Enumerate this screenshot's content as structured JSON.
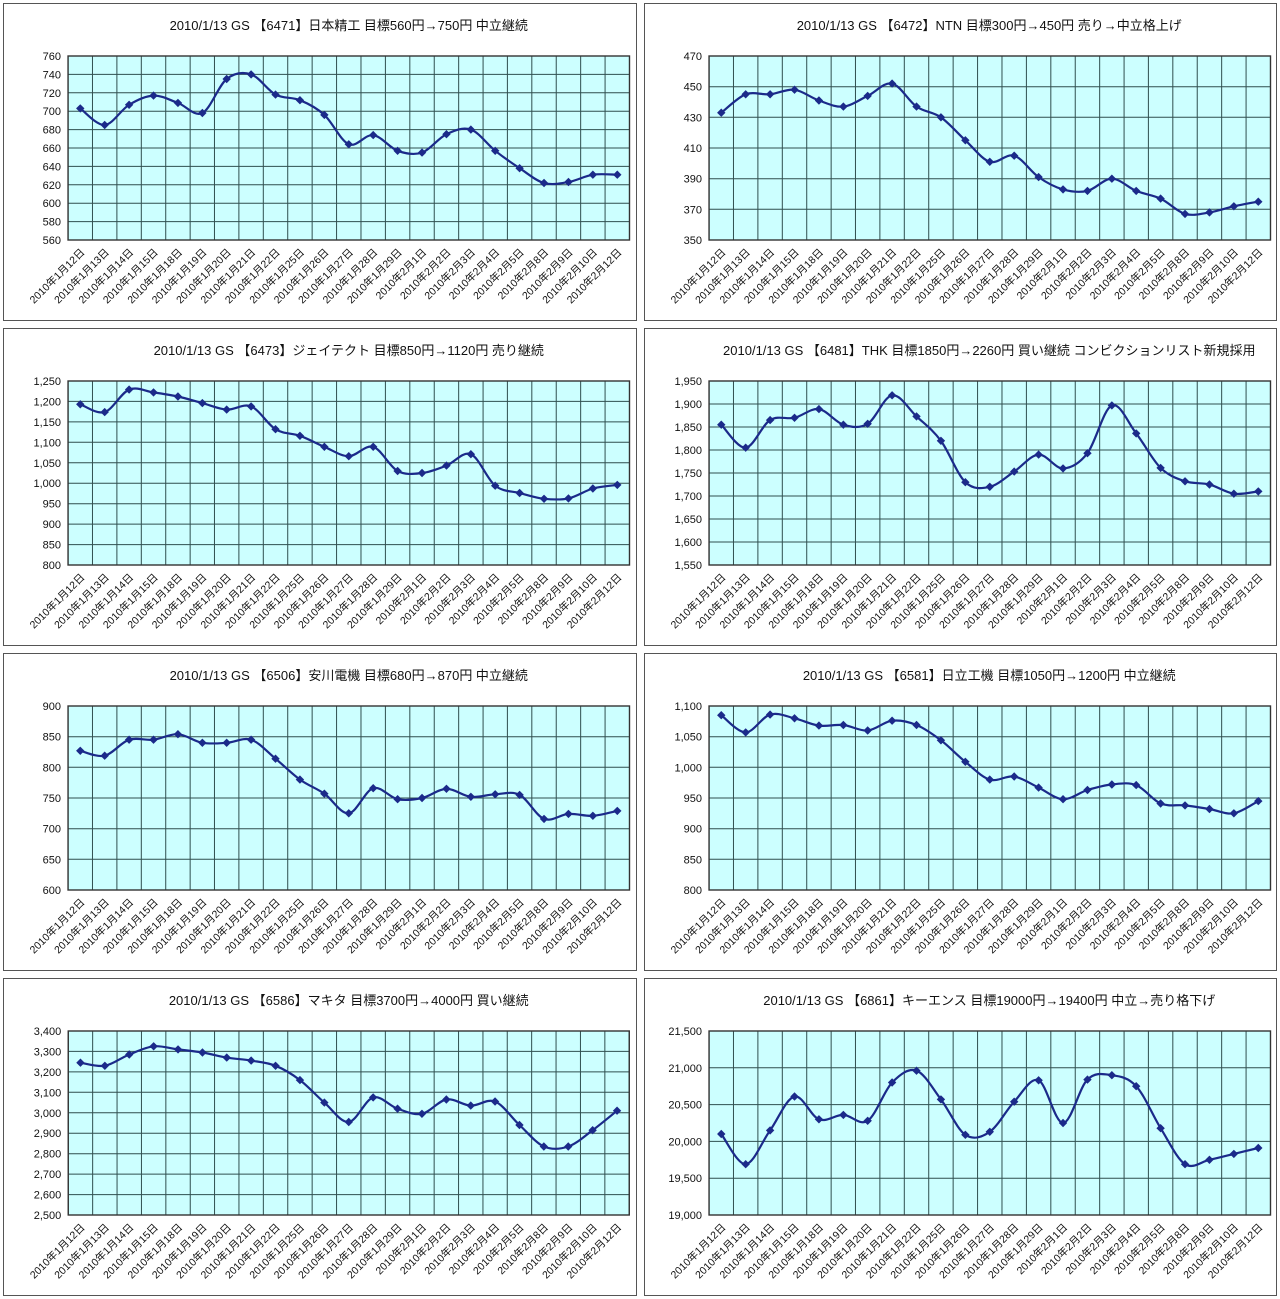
{
  "style": {
    "plot_area_bg": "#CCFFFF",
    "grid_color": "#2F4F4F",
    "series_color": "#1B2A8A",
    "axis_color": "#333333",
    "panel_border_color": "#555555",
    "title_color": "#111111",
    "tick_color": "#111111"
  },
  "chart_data": [
    {
      "type": "line",
      "title": "2010/1/13 GS 【6471】日本精工 目標560円→750円 中立継続",
      "categories": [
        "2010年1月12日",
        "2010年1月13日",
        "2010年1月14日",
        "2010年1月15日",
        "2010年1月18日",
        "2010年1月19日",
        "2010年1月20日",
        "2010年1月21日",
        "2010年1月22日",
        "2010年1月25日",
        "2010年1月26日",
        "2010年1月27日",
        "2010年1月28日",
        "2010年1月29日",
        "2010年2月1日",
        "2010年2月2日",
        "2010年2月3日",
        "2010年2月4日",
        "2010年2月5日",
        "2010年2月8日",
        "2010年2月9日",
        "2010年2月10日",
        "2010年2月12日"
      ],
      "values": [
        703,
        685,
        707,
        717,
        709,
        698,
        735,
        740,
        718,
        712,
        696,
        664,
        674,
        657,
        655,
        675,
        680,
        657,
        638,
        622,
        623,
        631,
        631
      ],
      "ylim": [
        560,
        760
      ],
      "ytick_step": 20,
      "xlabel": "",
      "ylabel": "",
      "grid": true,
      "legend": "none",
      "marker": "diamond",
      "smoothed": true,
      "number_format": "comma"
    },
    {
      "type": "line",
      "title": "2010/1/13 GS 【6472】NTN 目標300円→450円 売り→中立格上げ",
      "categories": [
        "2010年1月12日",
        "2010年1月13日",
        "2010年1月14日",
        "2010年1月15日",
        "2010年1月18日",
        "2010年1月19日",
        "2010年1月20日",
        "2010年1月21日",
        "2010年1月22日",
        "2010年1月25日",
        "2010年1月26日",
        "2010年1月27日",
        "2010年1月28日",
        "2010年1月29日",
        "2010年2月1日",
        "2010年2月2日",
        "2010年2月3日",
        "2010年2月4日",
        "2010年2月5日",
        "2010年2月8日",
        "2010年2月9日",
        "2010年2月10日",
        "2010年2月12日"
      ],
      "values": [
        433,
        445,
        445,
        448,
        441,
        437,
        444,
        452,
        437,
        430,
        415,
        401,
        405,
        391,
        383,
        382,
        390,
        382,
        377,
        367,
        368,
        372,
        375
      ],
      "ylim": [
        350,
        470
      ],
      "ytick_step": 20,
      "xlabel": "",
      "ylabel": "",
      "grid": true,
      "legend": "none",
      "marker": "diamond",
      "smoothed": true,
      "number_format": "comma"
    },
    {
      "type": "line",
      "title": "2010/1/13 GS 【6473】ジェイテクト 目標850円→1120円 売り継続",
      "categories": [
        "2010年1月12日",
        "2010年1月13日",
        "2010年1月14日",
        "2010年1月15日",
        "2010年1月18日",
        "2010年1月19日",
        "2010年1月20日",
        "2010年1月21日",
        "2010年1月22日",
        "2010年1月25日",
        "2010年1月26日",
        "2010年1月27日",
        "2010年1月28日",
        "2010年1月29日",
        "2010年2月1日",
        "2010年2月2日",
        "2010年2月3日",
        "2010年2月4日",
        "2010年2月5日",
        "2010年2月8日",
        "2010年2月9日",
        "2010年2月10日",
        "2010年2月12日"
      ],
      "values": [
        1193,
        1174,
        1229,
        1222,
        1212,
        1196,
        1180,
        1188,
        1132,
        1116,
        1089,
        1066,
        1089,
        1030,
        1025,
        1043,
        1071,
        994,
        976,
        962,
        963,
        987,
        996
      ],
      "ylim": [
        800,
        1250
      ],
      "ytick_step": 50,
      "xlabel": "",
      "ylabel": "",
      "grid": true,
      "legend": "none",
      "marker": "diamond",
      "smoothed": true,
      "number_format": "comma"
    },
    {
      "type": "line",
      "title": "2010/1/13 GS 【6481】THK 目標1850円→2260円 買い継続 コンビクションリスト新規採用",
      "categories": [
        "2010年1月12日",
        "2010年1月13日",
        "2010年1月14日",
        "2010年1月15日",
        "2010年1月18日",
        "2010年1月19日",
        "2010年1月20日",
        "2010年1月21日",
        "2010年1月22日",
        "2010年1月25日",
        "2010年1月26日",
        "2010年1月27日",
        "2010年1月28日",
        "2010年1月29日",
        "2010年2月1日",
        "2010年2月2日",
        "2010年2月3日",
        "2010年2月4日",
        "2010年2月5日",
        "2010年2月8日",
        "2010年2月9日",
        "2010年2月10日",
        "2010年2月12日"
      ],
      "values": [
        1855,
        1805,
        1865,
        1870,
        1889,
        1855,
        1857,
        1919,
        1873,
        1820,
        1730,
        1720,
        1753,
        1790,
        1760,
        1793,
        1897,
        1836,
        1761,
        1732,
        1725,
        1705,
        1710
      ],
      "ylim": [
        1550,
        1950
      ],
      "ytick_step": 50,
      "xlabel": "",
      "ylabel": "",
      "grid": true,
      "legend": "none",
      "marker": "diamond",
      "smoothed": true,
      "number_format": "comma"
    },
    {
      "type": "line",
      "title": "2010/1/13 GS 【6506】安川電機 目標680円→870円 中立継続",
      "categories": [
        "2010年1月12日",
        "2010年1月13日",
        "2010年1月14日",
        "2010年1月15日",
        "2010年1月18日",
        "2010年1月19日",
        "2010年1月20日",
        "2010年1月21日",
        "2010年1月22日",
        "2010年1月25日",
        "2010年1月26日",
        "2010年1月27日",
        "2010年1月28日",
        "2010年1月29日",
        "2010年2月1日",
        "2010年2月2日",
        "2010年2月3日",
        "2010年2月4日",
        "2010年2月5日",
        "2010年2月8日",
        "2010年2月9日",
        "2010年2月10日",
        "2010年2月12日"
      ],
      "values": [
        827,
        819,
        845,
        845,
        854,
        840,
        840,
        845,
        814,
        780,
        757,
        725,
        766,
        748,
        750,
        765,
        752,
        756,
        755,
        716,
        724,
        721,
        729
      ],
      "ylim": [
        600,
        900
      ],
      "ytick_step": 50,
      "xlabel": "",
      "ylabel": "",
      "grid": true,
      "legend": "none",
      "marker": "diamond",
      "smoothed": true,
      "number_format": "comma"
    },
    {
      "type": "line",
      "title": "2010/1/13 GS 【6581】日立工機 目標1050円→1200円 中立継続",
      "categories": [
        "2010年1月12日",
        "2010年1月13日",
        "2010年1月14日",
        "2010年1月15日",
        "2010年1月18日",
        "2010年1月19日",
        "2010年1月20日",
        "2010年1月21日",
        "2010年1月22日",
        "2010年1月25日",
        "2010年1月26日",
        "2010年1月27日",
        "2010年1月28日",
        "2010年1月29日",
        "2010年2月1日",
        "2010年2月2日",
        "2010年2月3日",
        "2010年2月4日",
        "2010年2月5日",
        "2010年2月8日",
        "2010年2月9日",
        "2010年2月10日",
        "2010年2月12日"
      ],
      "values": [
        1085,
        1057,
        1086,
        1080,
        1068,
        1069,
        1060,
        1076,
        1069,
        1044,
        1009,
        980,
        985,
        967,
        948,
        963,
        972,
        971,
        941,
        938,
        932,
        925,
        945
      ],
      "ylim": [
        800,
        1100
      ],
      "ytick_step": 50,
      "xlabel": "",
      "ylabel": "",
      "grid": true,
      "legend": "none",
      "marker": "diamond",
      "smoothed": true,
      "number_format": "comma"
    },
    {
      "type": "line",
      "title": "2010/1/13 GS 【6586】マキタ 目標3700円→4000円 買い継続",
      "categories": [
        "2010年1月12日",
        "2010年1月13日",
        "2010年1月14日",
        "2010年1月15日",
        "2010年1月18日",
        "2010年1月19日",
        "2010年1月20日",
        "2010年1月21日",
        "2010年1月22日",
        "2010年1月25日",
        "2010年1月26日",
        "2010年1月27日",
        "2010年1月28日",
        "2010年1月29日",
        "2010年2月1日",
        "2010年2月2日",
        "2010年2月3日",
        "2010年2月4日",
        "2010年2月5日",
        "2010年2月8日",
        "2010年2月9日",
        "2010年2月10日",
        "2010年2月12日"
      ],
      "values": [
        3245,
        3230,
        3285,
        3325,
        3310,
        3295,
        3270,
        3255,
        3230,
        3160,
        3050,
        2955,
        3075,
        3020,
        2995,
        3065,
        3035,
        3055,
        2940,
        2835,
        2835,
        2915,
        3010
      ],
      "ylim": [
        2500,
        3400
      ],
      "ytick_step": 100,
      "xlabel": "",
      "ylabel": "",
      "grid": true,
      "legend": "none",
      "marker": "diamond",
      "smoothed": true,
      "number_format": "comma"
    },
    {
      "type": "line",
      "title": "2010/1/13 GS 【6861】キーエンス  目標19000円→19400円 中立→売り格下げ",
      "categories": [
        "2010年1月12日",
        "2010年1月13日",
        "2010年1月14日",
        "2010年1月15日",
        "2010年1月18日",
        "2010年1月19日",
        "2010年1月20日",
        "2010年1月21日",
        "2010年1月22日",
        "2010年1月25日",
        "2010年1月26日",
        "2010年1月27日",
        "2010年1月28日",
        "2010年1月29日",
        "2010年2月1日",
        "2010年2月2日",
        "2010年2月3日",
        "2010年2月4日",
        "2010年2月5日",
        "2010年2月8日",
        "2010年2月9日",
        "2010年2月10日",
        "2010年2月12日"
      ],
      "values": [
        20100,
        19690,
        20150,
        20610,
        20300,
        20360,
        20280,
        20800,
        20960,
        20570,
        20090,
        20130,
        20540,
        20830,
        20250,
        20840,
        20900,
        20750,
        20180,
        19690,
        19750,
        19830,
        19910
      ],
      "ylim": [
        19000,
        21500
      ],
      "ytick_step": 500,
      "xlabel": "",
      "ylabel": "",
      "grid": true,
      "legend": "none",
      "marker": "diamond",
      "smoothed": true,
      "number_format": "comma"
    }
  ]
}
